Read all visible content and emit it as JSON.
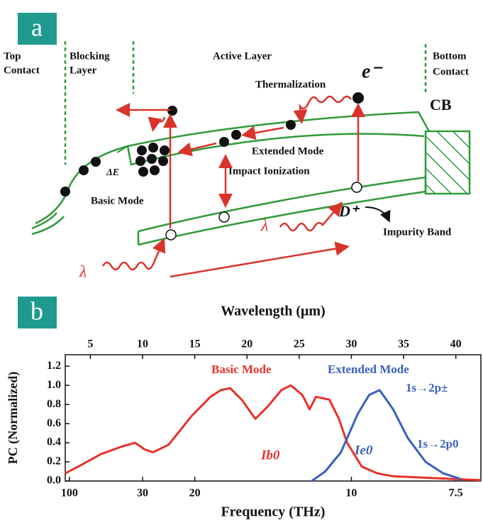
{
  "panel_labels": [
    "a",
    "b"
  ],
  "diagram": {
    "top_contact": [
      "Top",
      "Contact"
    ],
    "blocking_layer": [
      "Blocking",
      "Layer"
    ],
    "active_layer": "Active Layer",
    "bottom_contact": [
      "Bottom",
      "Contact"
    ],
    "thermalization": "Thermalization",
    "electron": "e⁻",
    "cb": "CB",
    "extended_mode": "Extended Mode",
    "impact_ionization": "Impact Ionization",
    "delta_e": "ΔE",
    "basic_mode": "Basic Mode",
    "donor": "D⁺",
    "impurity_band": "Impurity Band",
    "lambda_labels": [
      "λ",
      "λ"
    ]
  },
  "chart_data": {
    "type": "line",
    "x_label": "Wavelength (μm)",
    "x2_label": "Frequency (THz)",
    "y_label": "PC (Normalized)",
    "xlim": [
      2.6,
      42.4
    ],
    "xticks": [
      5,
      10,
      15,
      20,
      25,
      30,
      35,
      40
    ],
    "x2ticks": [
      {
        "value": 3,
        "label": "100"
      },
      {
        "value": 10,
        "label": "30"
      },
      {
        "value": 15,
        "label": "20"
      },
      {
        "value": 30,
        "label": "10"
      },
      {
        "value": 40,
        "label": "7.5"
      }
    ],
    "ylim": [
      0,
      1.32
    ],
    "yticks": [
      {
        "value": 0,
        "label": "0.0"
      },
      0.2,
      0.4,
      0.6,
      0.8,
      {
        "value": 1,
        "label": "1.0"
      },
      1.2
    ],
    "series": [
      {
        "name": "Basic Mode",
        "color": "#e8312b",
        "x": [
          2.6,
          4,
          6,
          8,
          9.3,
          10.2,
          11,
          12.5,
          14.7,
          16.5,
          17.5,
          18.4,
          19.5,
          20.8,
          22,
          23.3,
          24.2,
          25.3,
          26,
          26.6,
          27.9,
          28.8,
          29.6,
          31,
          32.5,
          34,
          36,
          38,
          40,
          42.4
        ],
        "values": [
          0.08,
          0.16,
          0.28,
          0.36,
          0.4,
          0.33,
          0.3,
          0.38,
          0.68,
          0.88,
          0.95,
          0.97,
          0.85,
          0.65,
          0.78,
          0.95,
          1.0,
          0.9,
          0.75,
          0.88,
          0.85,
          0.65,
          0.4,
          0.15,
          0.08,
          0.05,
          0.04,
          0.03,
          0.02,
          0.01
        ]
      },
      {
        "name": "Extended Mode",
        "color": "#3a5fbf",
        "x": [
          26.2,
          27.5,
          29,
          30.6,
          31.7,
          32.7,
          34,
          35.4,
          37.1,
          38.8,
          40.5
        ],
        "values": [
          0,
          0.1,
          0.3,
          0.7,
          0.9,
          0.95,
          0.75,
          0.45,
          0.2,
          0.08,
          0.02
        ]
      }
    ],
    "annotations": [
      "1s→2p±",
      "1s→2p0",
      "Ib0",
      "Ie0"
    ]
  }
}
